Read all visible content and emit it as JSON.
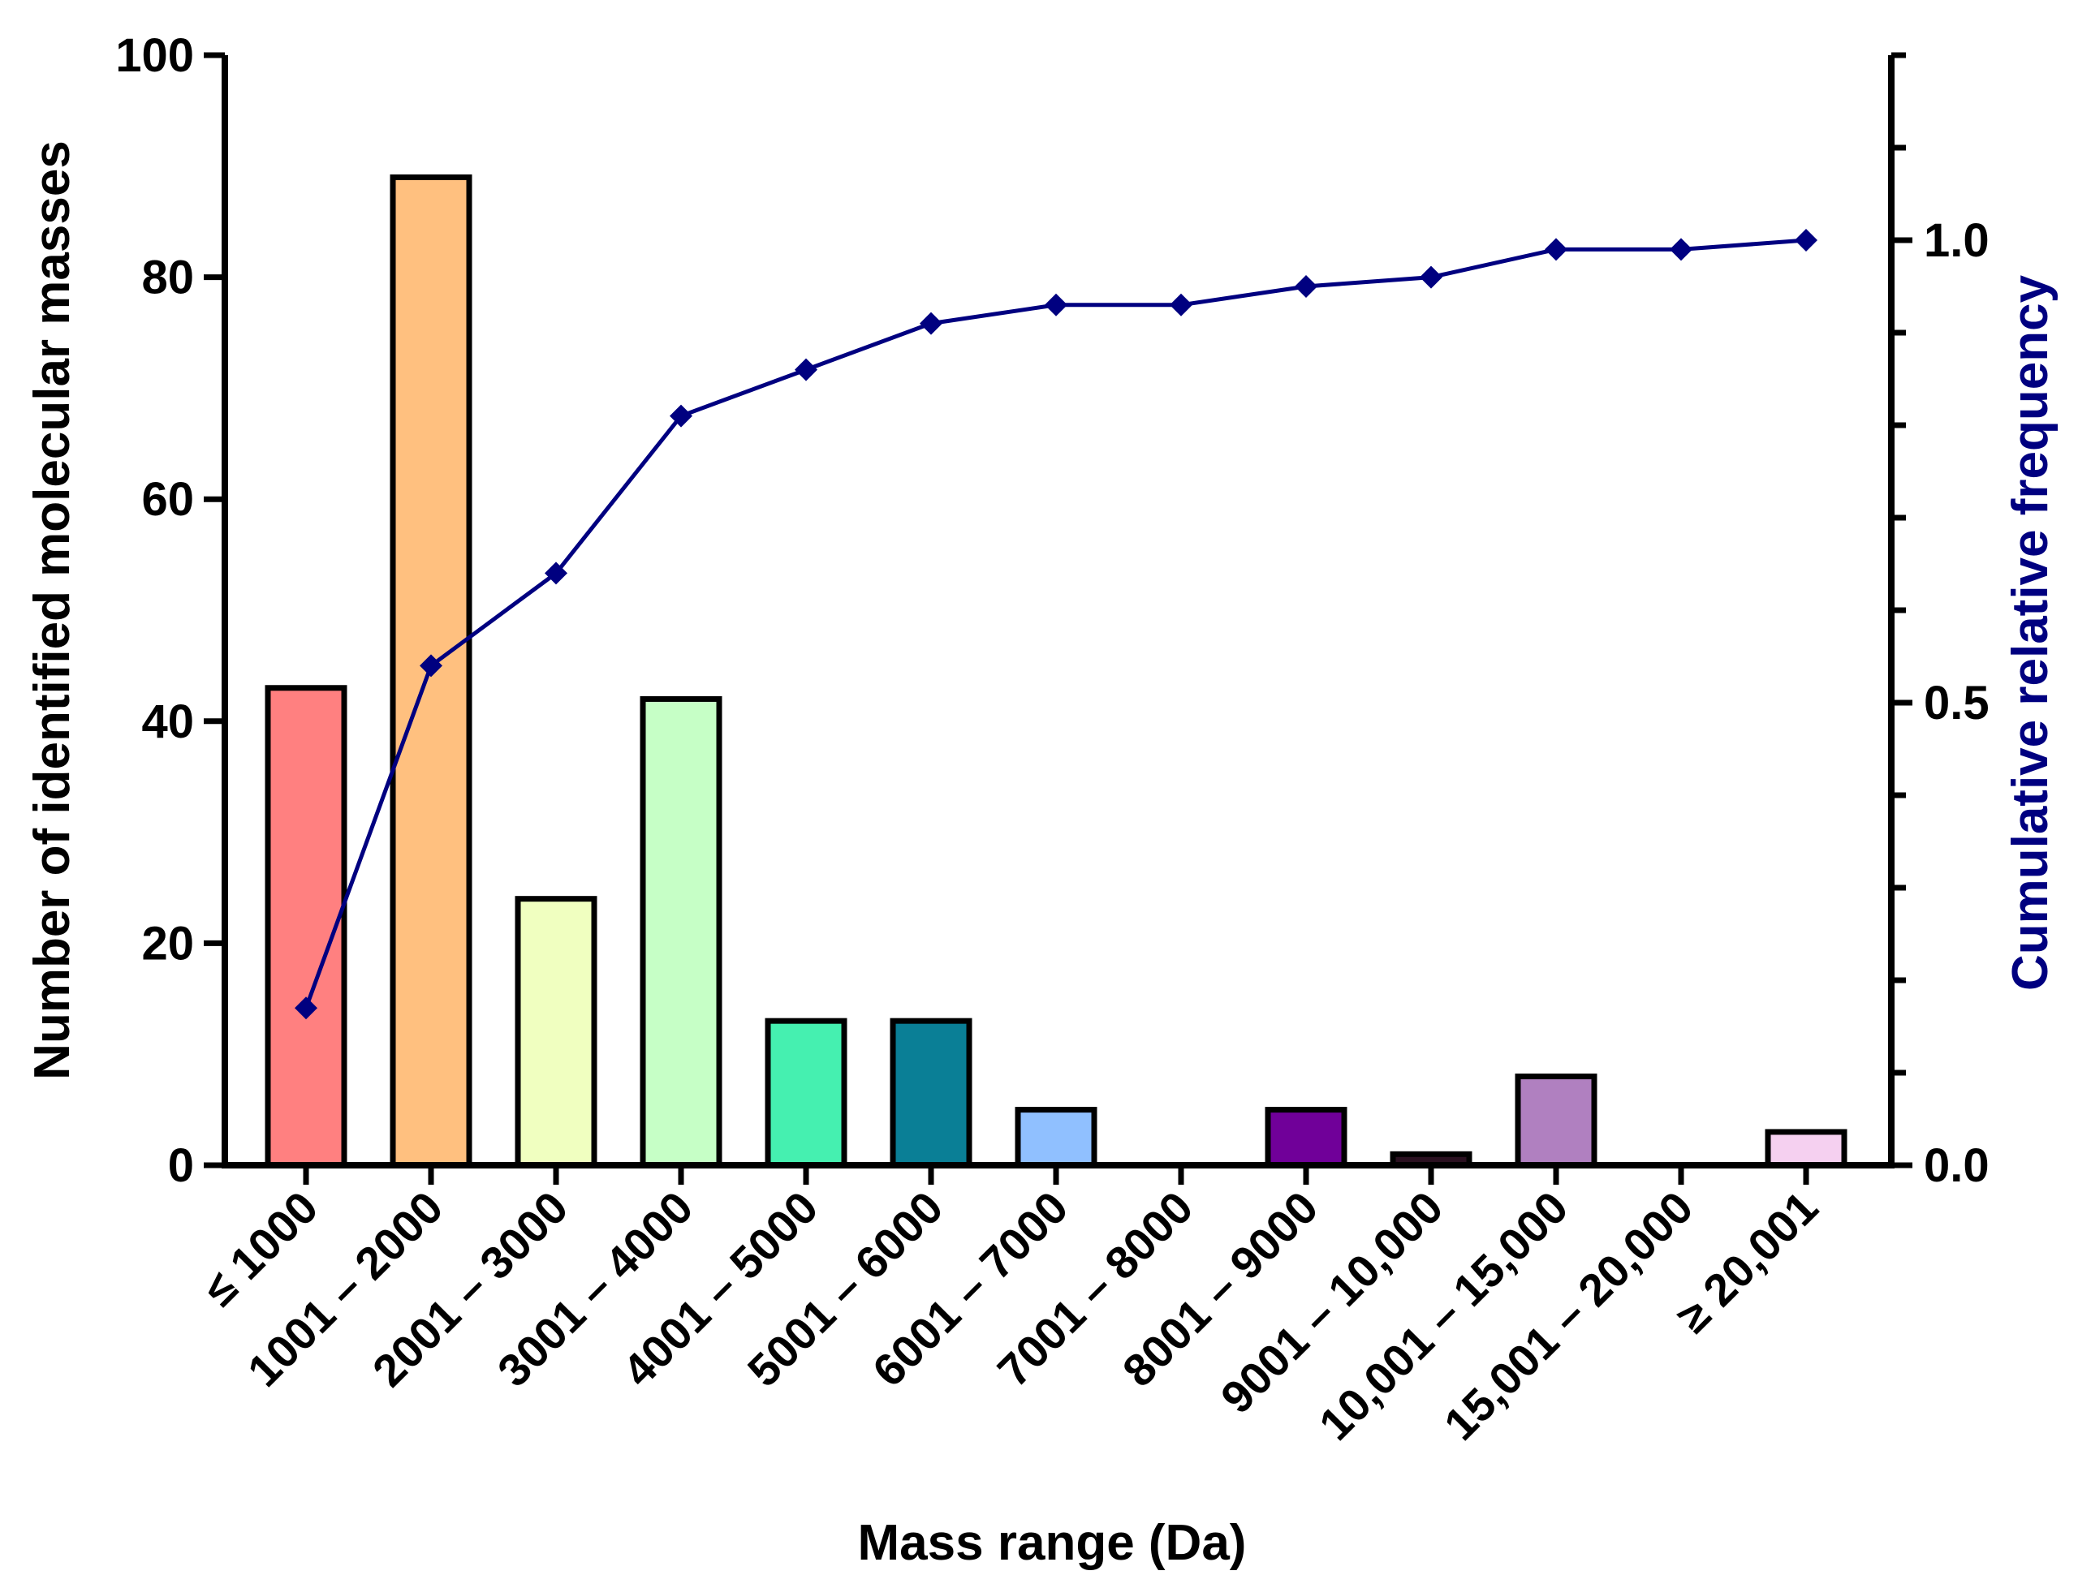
{
  "chart_data": {
    "type": "bar",
    "title": "",
    "xlabel": "Mass range (Da)",
    "ylabel": "Number of identified molecular masses",
    "y2label": "Cumulative relative frequency",
    "ylim": [
      0,
      100
    ],
    "y2lim": [
      0,
      1.2
    ],
    "y_ticks": [
      "0",
      "20",
      "40",
      "60",
      "80",
      "100"
    ],
    "y2_ticks": [
      "0.0",
      "0.5",
      "1.0"
    ],
    "categories": [
      "≤ 1000",
      "1001 – 2000",
      "2001 – 3000",
      "3001 – 4000",
      "4001 – 5000",
      "5001 – 6000",
      "6001 – 7000",
      "7001 – 8000",
      "8001 – 9000",
      "9001 – 10,000",
      "10,001 – 15,000",
      "15,001 – 20,000",
      "≥ 20,001"
    ],
    "series": [
      {
        "name": "Number of identified molecular masses",
        "kind": "bar",
        "axis": "left",
        "values": [
          43,
          89,
          24,
          42,
          13,
          13,
          5,
          0,
          5,
          1,
          8,
          0,
          3
        ],
        "colors": [
          "#ff8080",
          "#ffc07f",
          "#f0ffc0",
          "#c6ffc6",
          "#45f0b0",
          "#0a7f96",
          "#90c0ff",
          "#ffffff",
          "#700099",
          "#2a1020",
          "#b080c0",
          "#ffffff",
          "#f5d0f0"
        ]
      },
      {
        "name": "Cumulative relative frequency",
        "kind": "line",
        "axis": "right",
        "color": "#000080",
        "marker": "diamond",
        "values": [
          0.17,
          0.54,
          0.64,
          0.81,
          0.86,
          0.91,
          0.93,
          0.93,
          0.95,
          0.96,
          0.99,
          0.99,
          1.0
        ]
      }
    ]
  }
}
